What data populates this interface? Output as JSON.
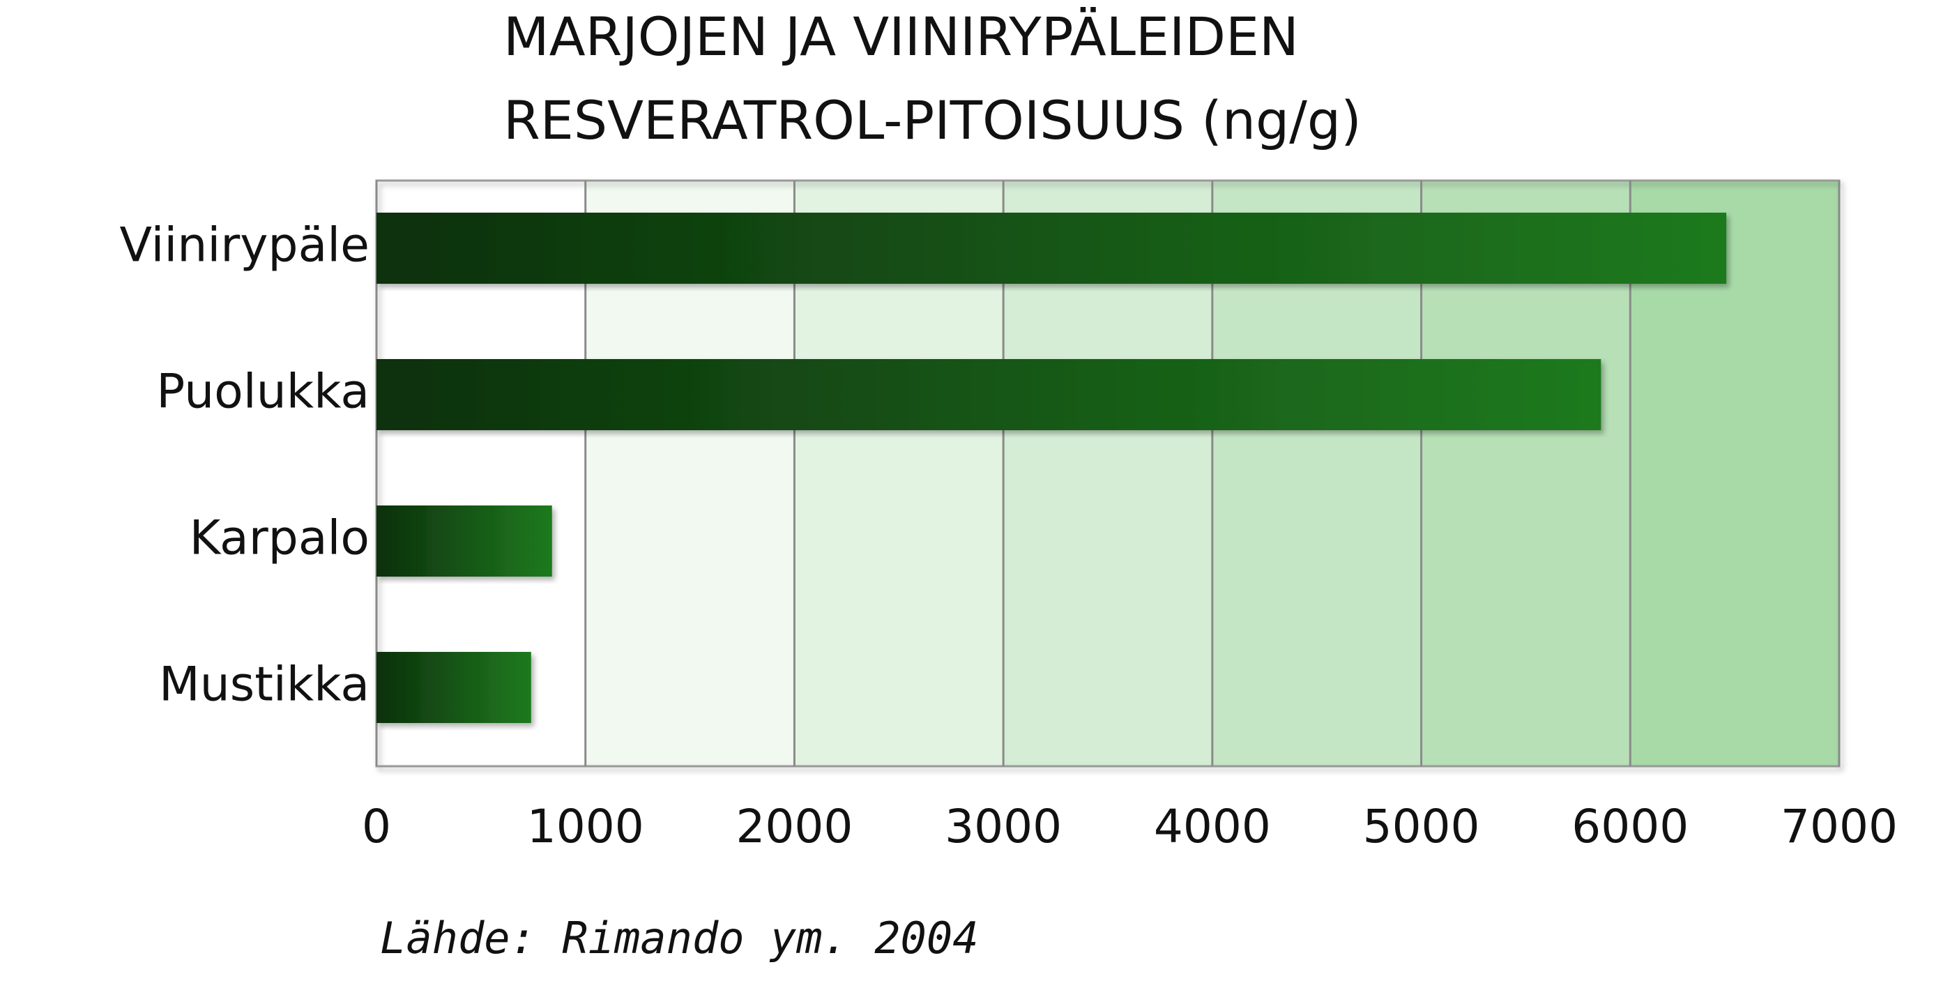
{
  "chart_data": {
    "type": "bar",
    "orientation": "horizontal",
    "title": [
      "MARJOJEN JA VIINIRYPÄLEIDEN",
      "RESVERATROL-PITOISUUS (ng/g)"
    ],
    "categories": [
      "Viinirypäle",
      "Puolukka",
      "Karpalo",
      "Mustikka"
    ],
    "values": [
      6460,
      5860,
      840,
      740
    ],
    "color": "#1a5e1a",
    "xlim": [
      0,
      7000
    ],
    "xticks": [
      0,
      1000,
      2000,
      3000,
      4000,
      5000,
      6000,
      7000
    ],
    "grid": true,
    "source": "Lähde: Rimando ym. 2004"
  }
}
